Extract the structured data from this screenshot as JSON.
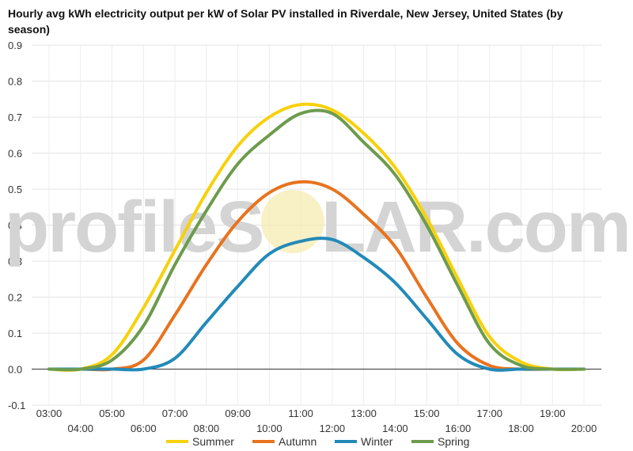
{
  "watermark": {
    "prefix": "profileS",
    "suffix": "LAR.com"
  },
  "chart_data": {
    "type": "line",
    "title_line1": "Hourly avg kWh electricity output per kW of Solar PV installed in Riverdale, New Jersey, United States (by",
    "title_line2": "season)",
    "xlabel": "",
    "ylabel": "",
    "x": [
      "03:00",
      "04:00",
      "05:00",
      "06:00",
      "07:00",
      "08:00",
      "09:00",
      "10:00",
      "11:00",
      "12:00",
      "13:00",
      "14:00",
      "15:00",
      "16:00",
      "17:00",
      "18:00",
      "19:00",
      "20:00"
    ],
    "x_labels_upper": [
      "03:00",
      "05:00",
      "07:00",
      "09:00",
      "11:00",
      "13:00",
      "15:00",
      "17:00",
      "19:00"
    ],
    "x_labels_lower": [
      "04:00",
      "06:00",
      "08:00",
      "10:00",
      "12:00",
      "14:00",
      "16:00",
      "18:00",
      "20:00"
    ],
    "yticks": [
      "-0.1",
      "0.0",
      "0.1",
      "0.2",
      "0.3",
      "0.4",
      "0.5",
      "0.6",
      "0.7",
      "0.8",
      "0.9"
    ],
    "ylim": [
      -0.1,
      0.9
    ],
    "grid": true,
    "legend_position": "bottom",
    "series": [
      {
        "name": "Summer",
        "color": "#f7d10a",
        "values": [
          0.0,
          0.0,
          0.04,
          0.17,
          0.33,
          0.49,
          0.62,
          0.7,
          0.735,
          0.72,
          0.655,
          0.56,
          0.42,
          0.25,
          0.09,
          0.02,
          0.0,
          0.0
        ]
      },
      {
        "name": "Autumn",
        "color": "#e8731e",
        "values": [
          0.0,
          0.0,
          0.0,
          0.025,
          0.15,
          0.29,
          0.41,
          0.49,
          0.52,
          0.5,
          0.43,
          0.34,
          0.2,
          0.07,
          0.01,
          0.0,
          0.0,
          0.0
        ]
      },
      {
        "name": "Winter",
        "color": "#238ab8",
        "values": [
          0.0,
          0.0,
          0.0,
          0.0,
          0.03,
          0.13,
          0.23,
          0.32,
          0.355,
          0.36,
          0.31,
          0.24,
          0.14,
          0.04,
          0.0,
          0.0,
          0.0,
          0.0
        ]
      },
      {
        "name": "Spring",
        "color": "#6d9b4d",
        "values": [
          0.0,
          0.0,
          0.025,
          0.12,
          0.29,
          0.44,
          0.57,
          0.65,
          0.71,
          0.71,
          0.63,
          0.54,
          0.4,
          0.23,
          0.07,
          0.01,
          0.0,
          0.0
        ]
      }
    ]
  }
}
